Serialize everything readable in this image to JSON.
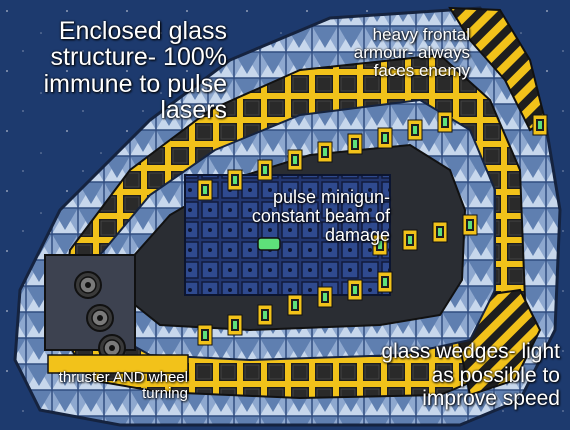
{
  "colors": {
    "background": "#1d3a6e",
    "glass_light": "#b9cbe3",
    "glass_dark": "#6f8db8",
    "armour_yellow": "#f2c21a",
    "armour_black": "#1e1e1e",
    "frame_dark": "#2a2d33",
    "core_blue": "#23397a",
    "laser_green": "#5ee07a"
  },
  "annotations": {
    "glass_structure": "Enclosed glass\nstructure- 100%\nimmune to pulse\nlasers",
    "frontal_armour": "heavy frontal\narmour- always\nfaces enemy",
    "pulse_minigun": "pulse minigun-\nconstant beam of\ndamage",
    "glass_wedges": "glass wedges- light\nas possible to\nimprove speed",
    "thruster_wheel": "thruster AND wheel\nturning"
  },
  "icons": [
    "laser-turret-icon",
    "thruster-icon",
    "core-icon",
    "hazard-armour-icon"
  ]
}
